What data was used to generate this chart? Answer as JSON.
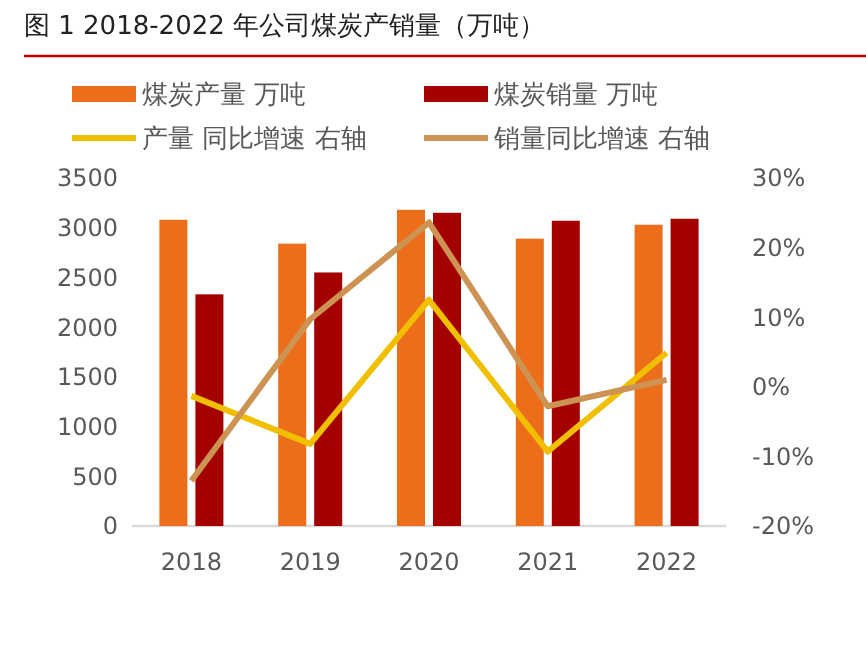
{
  "chart_data": {
    "type": "bar",
    "title": "图 1 2018-2022 年公司煤炭产销量（万吨）",
    "categories": [
      "2018",
      "2019",
      "2020",
      "2021",
      "2022"
    ],
    "series": [
      {
        "name": "煤炭产量 万吨",
        "color": "#ed6e1a",
        "values": [
          3080,
          2840,
          3180,
          2890,
          3030
        ]
      },
      {
        "name": "煤炭销量 万吨",
        "color": "#a50000",
        "values": [
          2330,
          2550,
          3150,
          3070,
          3090
        ]
      },
      {
        "name": "产量 同比增速 右轴",
        "type": "line",
        "axis": "y2",
        "color": "#f0c000",
        "values": [
          -1.3,
          -8.2,
          12.5,
          -9.3,
          4.9
        ]
      },
      {
        "name": "销量同比增速 右轴",
        "type": "line",
        "axis": "y2",
        "color": "#cc9352",
        "values": [
          -13.5,
          9.7,
          23.6,
          -2.8,
          1.0
        ]
      }
    ],
    "ylim": [
      0,
      3500
    ],
    "yticks": [
      0,
      500,
      1000,
      1500,
      2000,
      2500,
      3000,
      3500
    ],
    "y2lim": [
      -20,
      30
    ],
    "y2ticks": [
      {
        "value": -20,
        "label": "-20%"
      },
      {
        "value": -10,
        "label": "-10%"
      },
      {
        "value": 0,
        "label": "0%"
      },
      {
        "value": 10,
        "label": "10%"
      },
      {
        "value": 20,
        "label": "20%"
      },
      {
        "value": 30,
        "label": "30%"
      }
    ],
    "legend": "top",
    "grid": false,
    "marker": "none",
    "line_style": "solid"
  }
}
